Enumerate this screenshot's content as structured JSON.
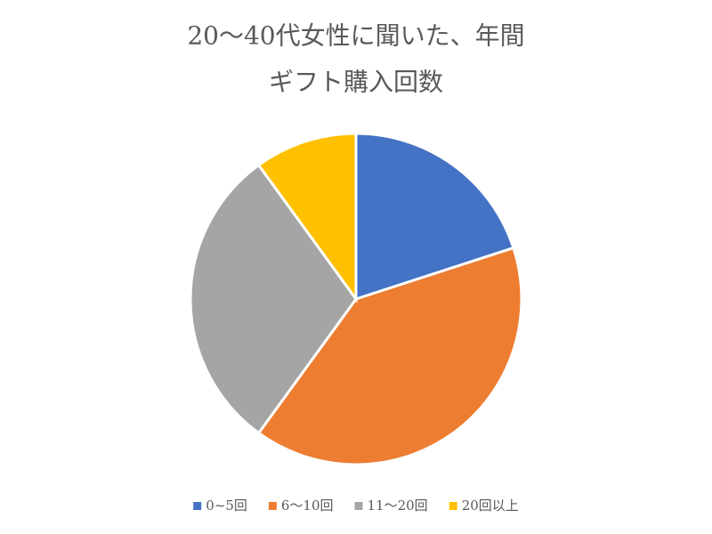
{
  "chart_data": {
    "type": "pie",
    "title": [
      "20～40代女性に聞いた、年間",
      "ギフト購入回数"
    ],
    "categories": [
      "0~5回",
      "6～10回",
      "11～20回",
      "20回以上"
    ],
    "values": [
      20,
      40,
      30,
      10
    ],
    "colors": [
      "#4472c4",
      "#ed7d31",
      "#a5a5a5",
      "#ffc000"
    ],
    "legend": "bottom"
  }
}
